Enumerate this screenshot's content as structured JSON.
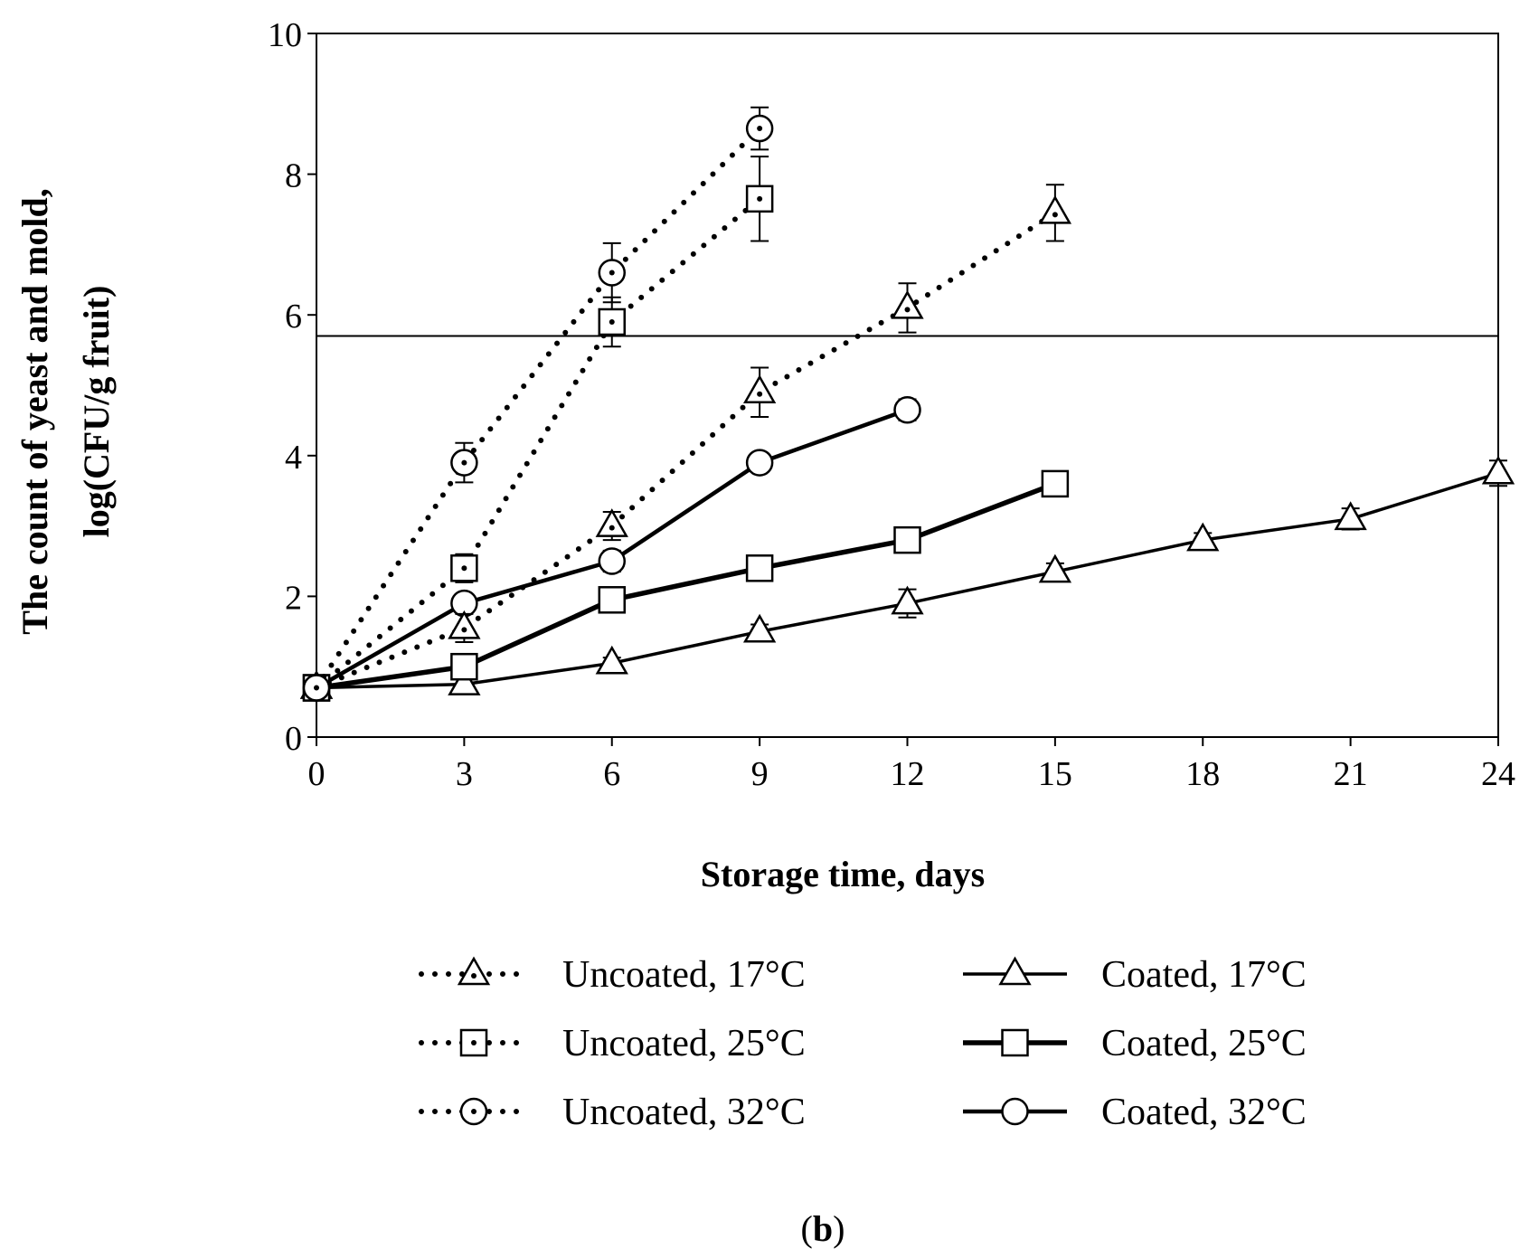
{
  "chart_data": {
    "type": "line",
    "panel_label": {
      "open": "(",
      "letter": "b",
      "close": ")"
    },
    "xlabel": "Storage time, days",
    "ylabel_line1": "The count of yeast and mold,",
    "ylabel_line2": "log(CFU/g fruit)",
    "xlim": [
      0,
      24
    ],
    "ylim": [
      0,
      10
    ],
    "x_ticks": [
      0,
      3,
      6,
      9,
      12,
      15,
      18,
      21,
      24
    ],
    "x_tick_labels": [
      "0",
      "3",
      "6",
      "9",
      "12",
      "15",
      "18",
      "21",
      "24"
    ],
    "y_ticks": [
      0,
      2,
      4,
      6,
      8,
      10
    ],
    "y_tick_labels": [
      "0",
      "2",
      "4",
      "6",
      "8",
      "10"
    ],
    "reference_line_y": 5.7,
    "grid": false,
    "legend_position": "bottom",
    "series": [
      {
        "name": "Uncoated, 17°C",
        "style": "dotted",
        "marker": "triangle",
        "width": 6,
        "x": [
          0,
          3,
          6,
          9,
          12,
          15
        ],
        "y": [
          0.7,
          1.55,
          3.0,
          4.9,
          6.1,
          7.45
        ],
        "err": [
          0,
          0.2,
          0.2,
          0.35,
          0.35,
          0.4
        ]
      },
      {
        "name": "Uncoated, 25°C",
        "style": "dotted",
        "marker": "square",
        "width": 6,
        "x": [
          0,
          3,
          6,
          9
        ],
        "y": [
          0.7,
          2.4,
          5.9,
          7.65
        ],
        "err": [
          0,
          0.2,
          0.35,
          0.6
        ]
      },
      {
        "name": "Uncoated, 32°C",
        "style": "dotted",
        "marker": "circle",
        "width": 6,
        "x": [
          0,
          3,
          6,
          9
        ],
        "y": [
          0.7,
          3.9,
          6.6,
          8.65
        ],
        "err": [
          0,
          0.28,
          0.42,
          0.3
        ]
      },
      {
        "name": "Coated, 17°C",
        "style": "solid",
        "marker": "triangle",
        "width": 3.5,
        "x": [
          0,
          3,
          6,
          9,
          12,
          15,
          18,
          21,
          24
        ],
        "y": [
          0.7,
          0.75,
          1.05,
          1.5,
          1.9,
          2.35,
          2.8,
          3.1,
          3.75
        ],
        "err": [
          0,
          0.08,
          0.08,
          0.1,
          0.2,
          0.12,
          0.1,
          0.15,
          0.18
        ]
      },
      {
        "name": "Coated, 25°C",
        "style": "solid",
        "marker": "square",
        "width": 5.5,
        "x": [
          0,
          3,
          6,
          9,
          12,
          15
        ],
        "y": [
          0.7,
          1.0,
          1.95,
          2.4,
          2.8,
          3.6
        ],
        "err": [
          0,
          0.1,
          0.12,
          0.12,
          0.1,
          0.1
        ]
      },
      {
        "name": "Coated, 32°C",
        "style": "solid",
        "marker": "circle",
        "width": 4.5,
        "x": [
          0,
          3,
          6,
          9,
          12
        ],
        "y": [
          0.7,
          1.9,
          2.5,
          3.9,
          4.65
        ],
        "err": [
          0,
          0.12,
          0.15,
          0.12,
          0.15
        ]
      }
    ]
  }
}
